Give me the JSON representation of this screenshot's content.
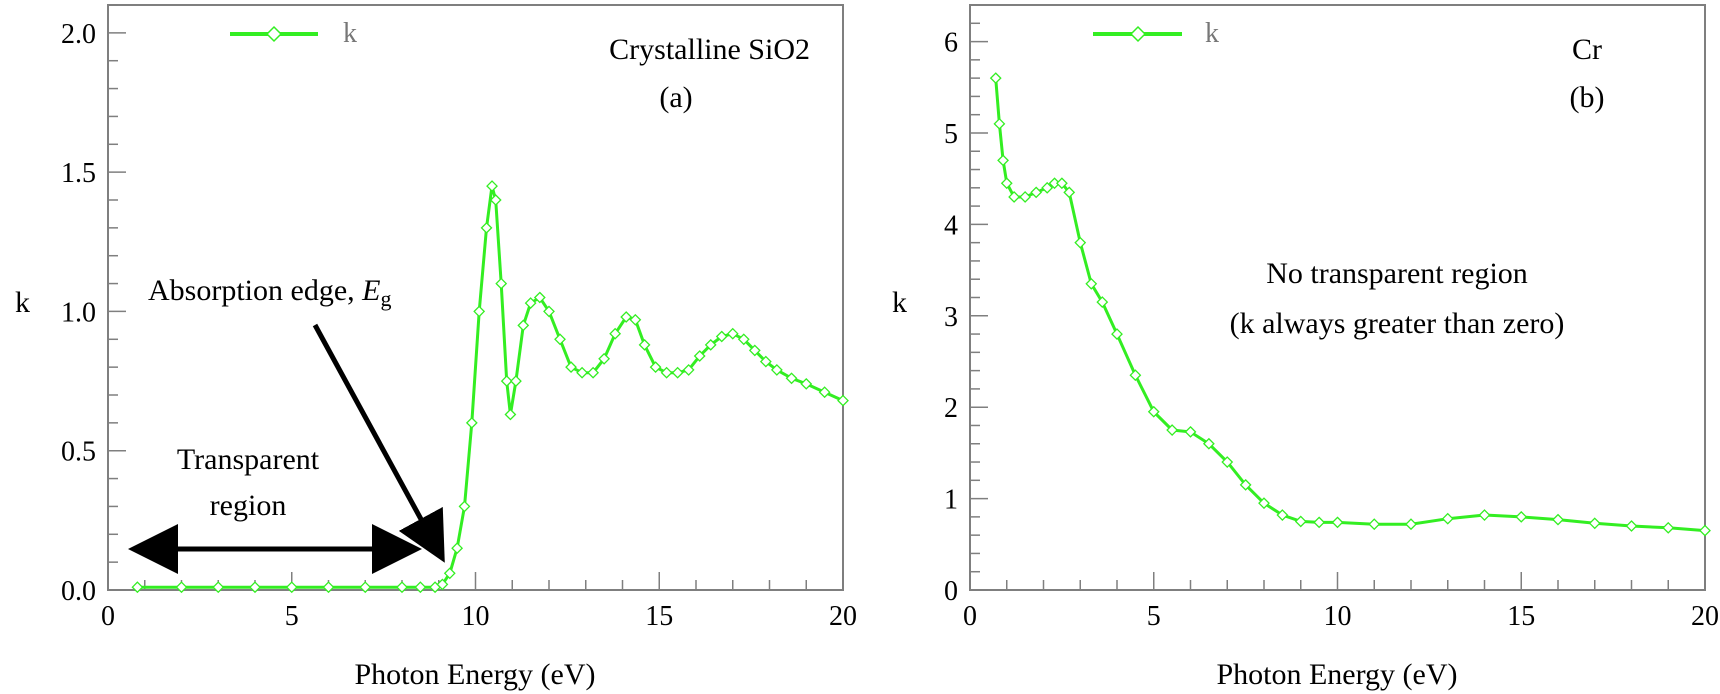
{
  "chart_data": [
    {
      "type": "line",
      "panel_label": "(a)",
      "material_label": "Crystalline SiO2",
      "xlabel": "Photon Energy  (eV)",
      "ylabel": "k",
      "xlim": [
        0,
        20
      ],
      "ylim": [
        0,
        2.1
      ],
      "xticks": [
        "0",
        "5",
        "10",
        "15",
        "20"
      ],
      "yticks": [
        "0.0",
        "0.5",
        "1.0",
        "1.5",
        "2.0"
      ],
      "legend": {
        "label": "k",
        "placement": "top-left"
      },
      "grid": false,
      "series": [
        {
          "name": "k",
          "color": "#33ee22",
          "marker": "diamond",
          "x": [
            0.8,
            2,
            3,
            4,
            5,
            6,
            7,
            8,
            8.5,
            8.9,
            9.1,
            9.3,
            9.5,
            9.7,
            9.9,
            10.1,
            10.3,
            10.45,
            10.55,
            10.7,
            10.85,
            10.95,
            11.1,
            11.3,
            11.5,
            11.75,
            12.0,
            12.3,
            12.6,
            12.9,
            13.2,
            13.5,
            13.8,
            14.1,
            14.35,
            14.6,
            14.9,
            15.2,
            15.5,
            15.8,
            16.1,
            16.4,
            16.7,
            17.0,
            17.3,
            17.6,
            17.9,
            18.2,
            18.6,
            19.0,
            19.5,
            20.0
          ],
          "y": [
            0.01,
            0.01,
            0.01,
            0.01,
            0.01,
            0.01,
            0.01,
            0.01,
            0.01,
            0.01,
            0.02,
            0.06,
            0.15,
            0.3,
            0.6,
            1.0,
            1.3,
            1.45,
            1.4,
            1.1,
            0.75,
            0.63,
            0.75,
            0.95,
            1.03,
            1.05,
            1.0,
            0.9,
            0.8,
            0.78,
            0.78,
            0.83,
            0.92,
            0.98,
            0.97,
            0.88,
            0.8,
            0.78,
            0.78,
            0.79,
            0.84,
            0.88,
            0.91,
            0.92,
            0.9,
            0.86,
            0.82,
            0.79,
            0.76,
            0.74,
            0.71,
            0.68
          ]
        }
      ],
      "annotations": {
        "absorption_edge": "Absorption edge, ",
        "eg_symbol": "E",
        "eg_subscript": "g",
        "transparent_line1": "Transparent",
        "transparent_line2": "region"
      }
    },
    {
      "type": "line",
      "panel_label": "(b)",
      "material_label": "Cr",
      "xlabel": "Photon Energy  (eV)",
      "ylabel": "k",
      "xlim": [
        0,
        20
      ],
      "ylim": [
        0,
        6.4
      ],
      "xticks": [
        "0",
        "5",
        "10",
        "15",
        "20"
      ],
      "yticks": [
        "0",
        "1",
        "2",
        "3",
        "4",
        "5",
        "6"
      ],
      "legend": {
        "label": "k",
        "placement": "top-left"
      },
      "grid": false,
      "series": [
        {
          "name": "k",
          "color": "#33ee22",
          "marker": "diamond",
          "x": [
            0.7,
            0.8,
            0.9,
            1.0,
            1.2,
            1.5,
            1.8,
            2.1,
            2.3,
            2.5,
            2.7,
            3.0,
            3.3,
            3.6,
            4.0,
            4.5,
            5.0,
            5.5,
            6.0,
            6.5,
            7.0,
            7.5,
            8.0,
            8.5,
            9.0,
            9.5,
            10,
            11,
            12,
            13,
            14,
            15,
            16,
            17,
            18,
            19,
            20
          ],
          "y": [
            5.6,
            5.1,
            4.7,
            4.45,
            4.3,
            4.3,
            4.35,
            4.4,
            4.45,
            4.45,
            4.35,
            3.8,
            3.35,
            3.15,
            2.8,
            2.35,
            1.95,
            1.75,
            1.73,
            1.6,
            1.4,
            1.15,
            0.95,
            0.82,
            0.75,
            0.74,
            0.74,
            0.72,
            0.72,
            0.78,
            0.82,
            0.8,
            0.77,
            0.73,
            0.7,
            0.68,
            0.65
          ]
        }
      ],
      "annotations": {
        "line1": "No transparent region",
        "line2": "(k always greater than zero)"
      }
    }
  ]
}
